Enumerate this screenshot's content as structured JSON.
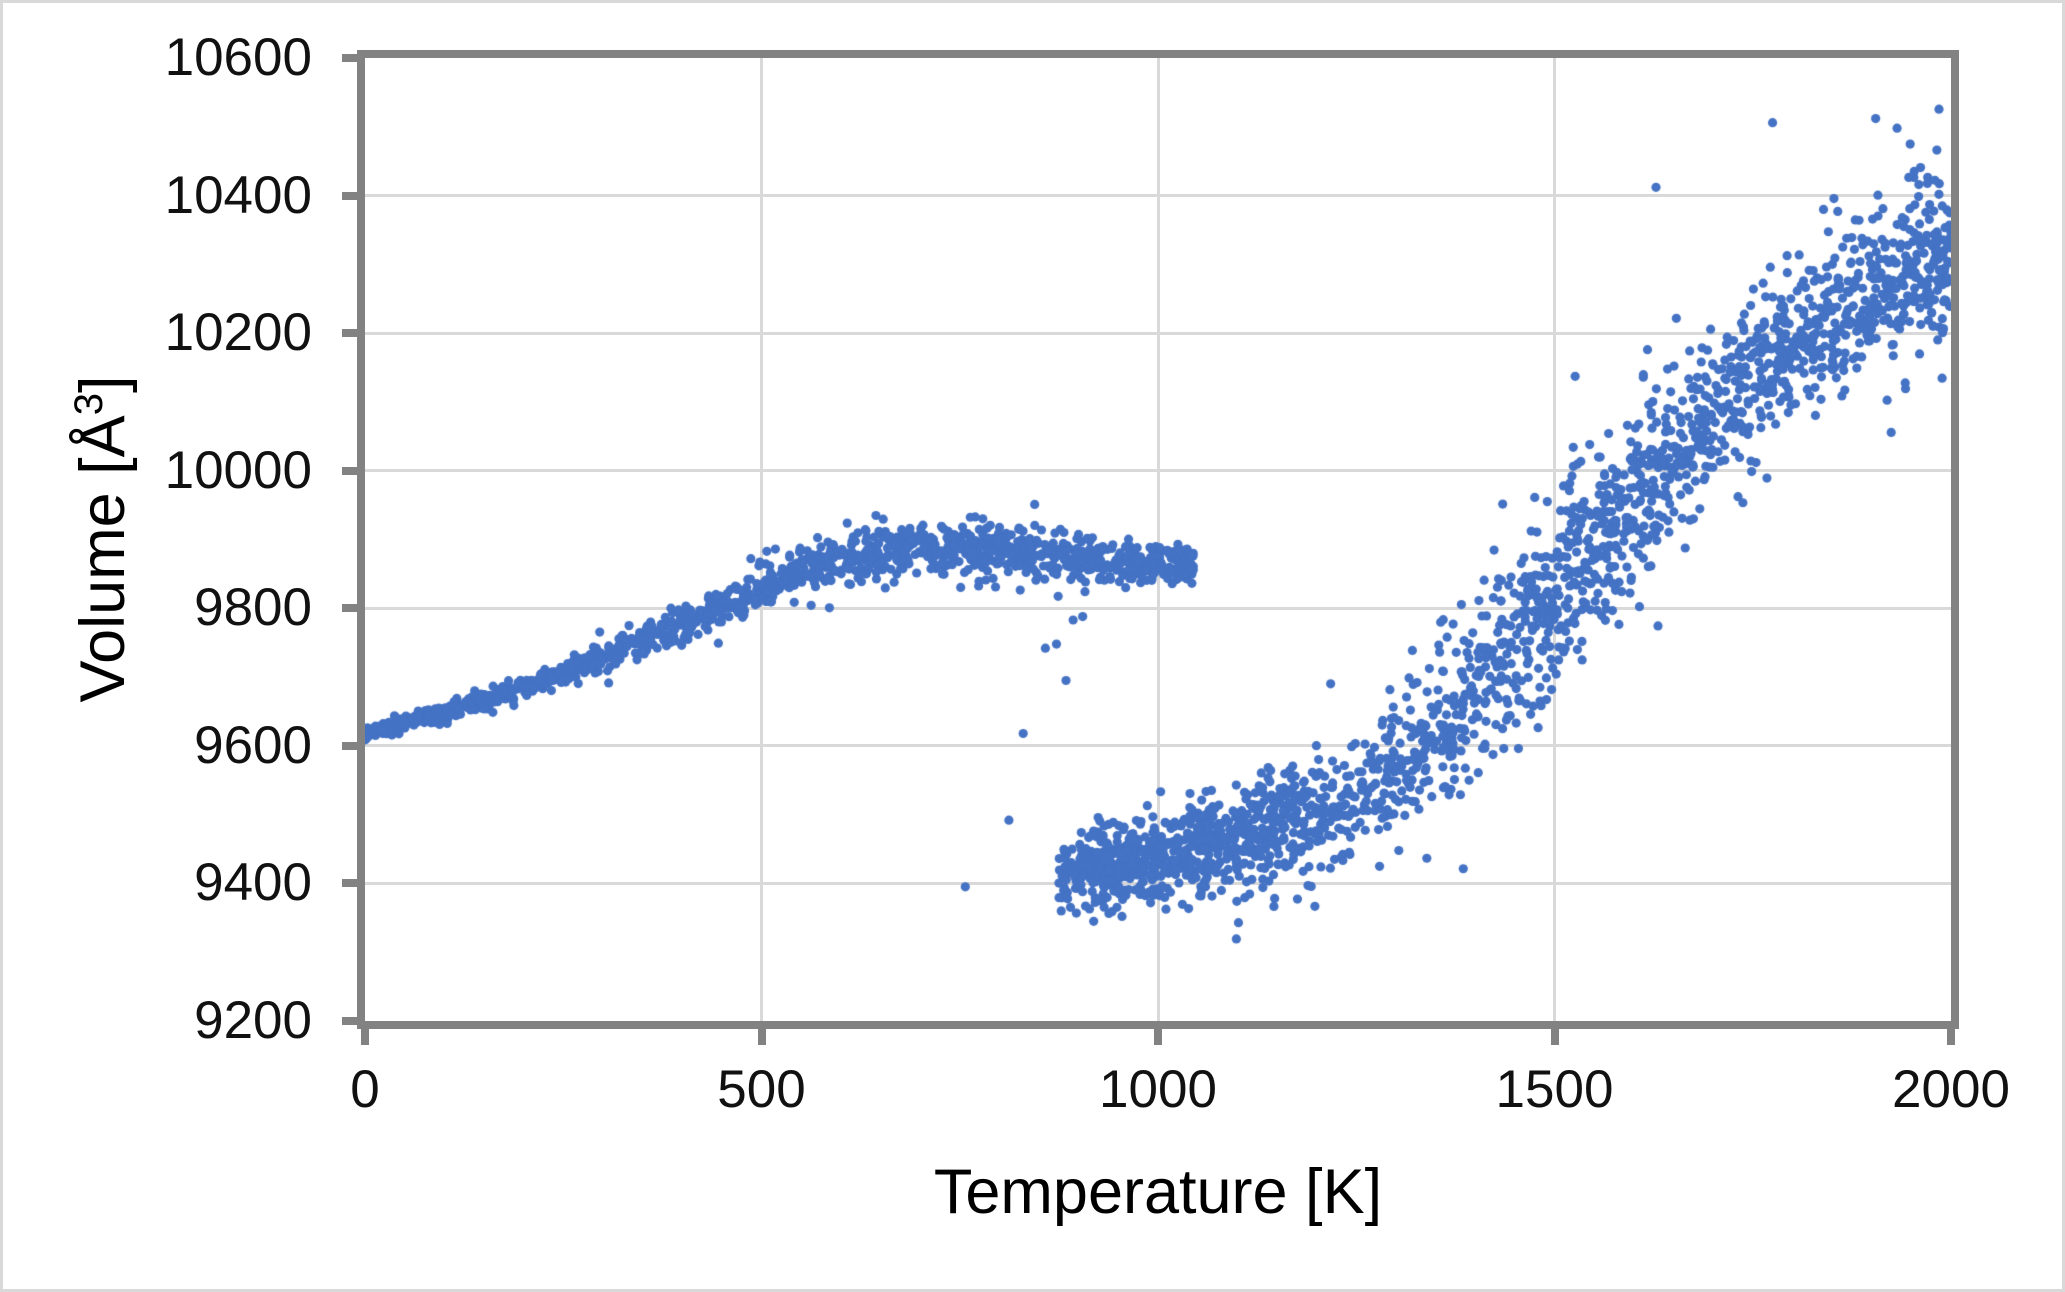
{
  "figure": {
    "background": "#FFFFFF",
    "outer_border_color": "#D9D9D9"
  },
  "chart_data": {
    "type": "scatter",
    "title": "",
    "xlabel": "Temperature [K]",
    "ylabel": "Volume [Å³]",
    "ylabel_parts": {
      "base": "Volume [Å",
      "sup": "3",
      "close": "]"
    },
    "xlim": [
      0,
      2000
    ],
    "ylim": [
      9200,
      10600
    ],
    "x_ticks": [
      0,
      500,
      1000,
      1500,
      2000
    ],
    "y_ticks": [
      9200,
      9400,
      9600,
      9800,
      10000,
      10200,
      10400,
      10600
    ],
    "grid": true,
    "legend": "none",
    "axis_color": "#828282",
    "gridline_color": "#D9D9D9",
    "tick_label_color": "#111111",
    "marker": {
      "color": "#4472C4",
      "radius_px": 4.6,
      "opacity": 1.0
    },
    "seed": 13,
    "description": "Molecular-dynamics volume vs temperature showing hysteresis: a low-temperature branch rising from ~9620 to a ~9885 plateau (T = 0-1040 K), a sparse transition, and a high-temperature branch climbing from ~9420 at 900 K to ~10300 at 2000 K with increasing scatter.",
    "series": [
      {
        "name": "low-temperature-branch",
        "mean_anchors": [
          [
            0,
            9618
          ],
          [
            100,
            9648
          ],
          [
            200,
            9685
          ],
          [
            300,
            9728
          ],
          [
            400,
            9775
          ],
          [
            500,
            9830
          ],
          [
            550,
            9852
          ],
          [
            600,
            9868
          ],
          [
            650,
            9878
          ],
          [
            700,
            9885
          ],
          [
            750,
            9888
          ],
          [
            800,
            9886
          ],
          [
            850,
            9880
          ],
          [
            900,
            9874
          ],
          [
            950,
            9868
          ],
          [
            1000,
            9864
          ],
          [
            1045,
            9862
          ]
        ],
        "sigma_anchors": [
          [
            0,
            5
          ],
          [
            150,
            7
          ],
          [
            300,
            10
          ],
          [
            450,
            13
          ],
          [
            600,
            15
          ],
          [
            750,
            16
          ],
          [
            900,
            15
          ],
          [
            1045,
            14
          ]
        ],
        "tail_prob": 0.04,
        "tail_mult": 1.8,
        "segments": [
          {
            "n": 1280,
            "x": [
              0,
              1010
            ]
          },
          {
            "n": 70,
            "x": [
              1010,
              1045
            ]
          },
          {
            "n": 50,
            "x": [
              380,
              900
            ],
            "dy": 28
          },
          {
            "n": 25,
            "x": [
              500,
              950
            ],
            "dy": -30
          }
        ]
      },
      {
        "name": "high-temperature-branch",
        "mean_anchors": [
          [
            875,
            9420
          ],
          [
            950,
            9428
          ],
          [
            1000,
            9438
          ],
          [
            1050,
            9452
          ],
          [
            1100,
            9468
          ],
          [
            1150,
            9485
          ],
          [
            1200,
            9505
          ],
          [
            1250,
            9530
          ],
          [
            1300,
            9560
          ],
          [
            1350,
            9602
          ],
          [
            1400,
            9665
          ],
          [
            1450,
            9735
          ],
          [
            1500,
            9808
          ],
          [
            1550,
            9882
          ],
          [
            1600,
            9955
          ],
          [
            1650,
            10025
          ],
          [
            1700,
            10085
          ],
          [
            1750,
            10140
          ],
          [
            1800,
            10185
          ],
          [
            1850,
            10222
          ],
          [
            1900,
            10252
          ],
          [
            1950,
            10276
          ],
          [
            2000,
            10297
          ]
        ],
        "sigma_anchors": [
          [
            875,
            26
          ],
          [
            1000,
            30
          ],
          [
            1100,
            34
          ],
          [
            1200,
            38
          ],
          [
            1300,
            44
          ],
          [
            1400,
            60
          ],
          [
            1500,
            66
          ],
          [
            1550,
            64
          ],
          [
            1600,
            58
          ],
          [
            1800,
            58
          ],
          [
            2000,
            60
          ]
        ],
        "tail_prob": 0.05,
        "tail_mult": 1.9,
        "segments": [
          {
            "n": 1750,
            "x": [
              875,
              2000
            ]
          },
          {
            "n": 260,
            "x": [
              895,
              1160
            ]
          },
          {
            "n": 170,
            "x": [
              1480,
              2000
            ]
          },
          {
            "n": 70,
            "x": [
              1290,
              1620
            ],
            "dy": 105
          },
          {
            "n": 35,
            "x": [
              950,
              1250
            ],
            "dy": -55
          }
        ]
      },
      {
        "name": "transition-points",
        "points": [
          [
            757,
            9395
          ],
          [
            812,
            9492
          ],
          [
            830,
            9618
          ],
          [
            858,
            9742
          ],
          [
            872,
            9748
          ],
          [
            884,
            9695
          ],
          [
            893,
            9783
          ],
          [
            905,
            9788
          ],
          [
            878,
            9360
          ],
          [
            942,
            9359
          ]
        ]
      },
      {
        "name": "high-outlier-points",
        "points": [
          [
            1628,
            10412
          ],
          [
            1775,
            10506
          ],
          [
            1905,
            10512
          ],
          [
            1932,
            10498
          ]
        ]
      }
    ]
  }
}
